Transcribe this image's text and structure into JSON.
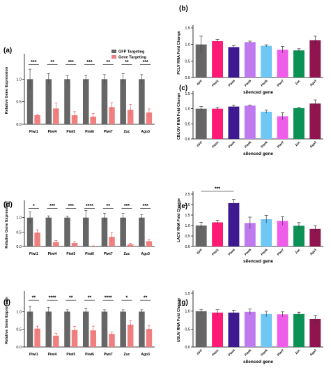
{
  "colors": {
    "gfp_gray": "#666666",
    "gene_salmon": "#f08080",
    "axis": "#000000",
    "sig": "#000000"
  },
  "chart_data": [
    {
      "id": "a",
      "panel_label": "(a)",
      "type": "bar",
      "ylabel": "Relative Gene Expression",
      "xlabel": "",
      "ylim": [
        0,
        1.5
      ],
      "yticks": [
        0.0,
        0.5,
        1.0
      ],
      "categories": [
        "Piwi1",
        "Piwi4",
        "Piwi5",
        "Piwi6",
        "Piwi7",
        "Zuc",
        "Ago3"
      ],
      "legend": [
        "GFP Targeting",
        "Gene Targeting"
      ],
      "series": [
        {
          "name": "GFP Targeting",
          "values": [
            1.0,
            1.0,
            1.0,
            1.0,
            1.0,
            1.0,
            1.0
          ],
          "errors": [
            0.22,
            0.12,
            0.08,
            0.08,
            0.1,
            0.12,
            0.1
          ]
        },
        {
          "name": "Gene Targeting",
          "values": [
            0.2,
            0.35,
            0.2,
            0.17,
            0.38,
            0.32,
            0.26
          ],
          "errors": [
            0.02,
            0.12,
            0.08,
            0.07,
            0.1,
            0.12,
            0.08
          ]
        }
      ],
      "significance": [
        "***",
        "**",
        "***",
        "***",
        "**",
        "**",
        "***"
      ]
    },
    {
      "id": "b",
      "panel_label": "(b)",
      "type": "bar",
      "ylabel": "PCLV RNA Fold Change",
      "xlabel": "silenced gene",
      "ylim": [
        0,
        1.5
      ],
      "yticks": [
        0.0,
        0.5,
        1.0,
        1.5
      ],
      "categories": [
        "GFP",
        "Piwi1",
        "Piwi4",
        "Piwi5",
        "Piwi6",
        "Piwi7",
        "Zuc",
        "Ago3"
      ],
      "colors": [
        "#666666",
        "#ff1a75",
        "#3d1a8f",
        "#c07af0",
        "#6ec7f5",
        "#ee5ee8",
        "#0b9155",
        "#8f1450"
      ],
      "series": [
        {
          "name": "",
          "values": [
            1.0,
            1.1,
            0.92,
            1.07,
            0.96,
            0.84,
            0.82,
            1.13
          ],
          "errors": [
            0.25,
            0.05,
            0.05,
            0.03,
            0.03,
            0.1,
            0.05,
            0.12
          ]
        }
      ]
    },
    {
      "id": "c",
      "panel_label": "(c)",
      "type": "bar",
      "ylabel": "CBLOV RNA Fold Change",
      "xlabel": "silenced gene",
      "ylim": [
        0,
        1.5
      ],
      "yticks": [
        0.0,
        0.5,
        1.0,
        1.5
      ],
      "categories": [
        "GFP",
        "Piwi1",
        "Piwi4",
        "Piwi5",
        "Piwi6",
        "Piwi7",
        "Zuc",
        "Ago3"
      ],
      "colors": [
        "#666666",
        "#ff1a75",
        "#3d1a8f",
        "#c07af0",
        "#6ec7f5",
        "#ee5ee8",
        "#0b9155",
        "#8f1450"
      ],
      "series": [
        {
          "name": "",
          "values": [
            1.0,
            1.0,
            1.07,
            1.1,
            0.9,
            0.75,
            1.02,
            1.17
          ],
          "errors": [
            0.07,
            0.05,
            0.05,
            0.02,
            0.05,
            0.12,
            0.02,
            0.12
          ]
        }
      ]
    },
    {
      "id": "d",
      "panel_label": "(d)",
      "type": "bar",
      "ylabel": "Relative Gene Expression",
      "xlabel": "",
      "ylim": [
        0,
        1.5
      ],
      "yticks": [
        0.0,
        0.5,
        1.0
      ],
      "categories": [
        "Piwi1",
        "Piwi4",
        "Piwi5",
        "Piwi6",
        "Piwi7",
        "Zuc",
        "Ago3"
      ],
      "series": [
        {
          "name": "GFP Targeting",
          "values": [
            1.0,
            1.0,
            1.0,
            1.0,
            1.0,
            1.0,
            1.0
          ],
          "errors": [
            0.2,
            0.06,
            0.05,
            0.25,
            0.15,
            0.15,
            0.1
          ]
        },
        {
          "name": "Gene Targeting",
          "values": [
            0.48,
            0.15,
            0.12,
            0.01,
            0.33,
            0.07,
            0.18
          ],
          "errors": [
            0.1,
            0.06,
            0.05,
            0.01,
            0.15,
            0.04,
            0.06
          ]
        }
      ],
      "significance": [
        "*",
        "***",
        "***",
        "****",
        "**",
        "***",
        "***"
      ]
    },
    {
      "id": "e",
      "panel_label": "(e)",
      "type": "bar",
      "ylabel": "LACV RNA Fold Change",
      "xlabel": "silenced gene",
      "ylim": [
        0,
        2.5
      ],
      "yticks": [
        0.0,
        0.5,
        1.0,
        1.5,
        2.0,
        2.5
      ],
      "categories": [
        "GFP",
        "Piwi1",
        "Piwi4",
        "Piwi5",
        "Piwi6",
        "Piwi7",
        "Zuc",
        "Ago3"
      ],
      "colors": [
        "#666666",
        "#ff1a75",
        "#3d1a8f",
        "#c07af0",
        "#6ec7f5",
        "#ee5ee8",
        "#0b9155",
        "#8f1450"
      ],
      "series": [
        {
          "name": "",
          "values": [
            1.0,
            1.15,
            2.07,
            1.12,
            1.3,
            1.22,
            0.99,
            0.84
          ],
          "errors": [
            0.15,
            0.1,
            0.18,
            0.28,
            0.18,
            0.2,
            0.15,
            0.15
          ]
        }
      ],
      "bracket": {
        "from": "GFP",
        "to": "Piwi4",
        "label": "***"
      }
    },
    {
      "id": "f",
      "panel_label": "(f)",
      "type": "bar",
      "ylabel": "Relative Gene Expression",
      "xlabel": "",
      "ylim": [
        0,
        1.5
      ],
      "yticks": [
        0.0,
        0.5,
        1.0
      ],
      "categories": [
        "Piwi1",
        "Piwi4",
        "Piwi5",
        "Piwi6",
        "Piwi7",
        "Zuc",
        "Ago3"
      ],
      "series": [
        {
          "name": "GFP Targeting",
          "values": [
            1.0,
            1.0,
            1.0,
            1.0,
            1.0,
            1.0,
            1.0
          ],
          "errors": [
            0.15,
            0.12,
            0.05,
            0.1,
            0.05,
            0.05,
            0.05
          ]
        },
        {
          "name": "Gene Targeting",
          "values": [
            0.52,
            0.32,
            0.48,
            0.47,
            0.37,
            0.63,
            0.51
          ],
          "errors": [
            0.07,
            0.07,
            0.1,
            0.12,
            0.05,
            0.12,
            0.1
          ]
        }
      ],
      "significance": [
        "**",
        "****",
        "**",
        "**",
        "****",
        "*",
        "**"
      ]
    },
    {
      "id": "g",
      "panel_label": "(g)",
      "type": "bar",
      "ylabel": "USUV RNA Fold Change",
      "xlabel": "silenced gene",
      "ylim": [
        0,
        1.5
      ],
      "yticks": [
        0.0,
        0.5,
        1.0,
        1.5
      ],
      "categories": [
        "GFP",
        "Piwi1",
        "Piwi4",
        "Piwi5",
        "Piwi6",
        "Piwi7",
        "Zuc",
        "Ago3"
      ],
      "colors": [
        "#666666",
        "#ff1a75",
        "#3d1a8f",
        "#c07af0",
        "#6ec7f5",
        "#ee5ee8",
        "#0b9155",
        "#8f1450"
      ],
      "series": [
        {
          "name": "",
          "values": [
            1.0,
            0.96,
            0.96,
            0.98,
            0.92,
            0.91,
            0.92,
            0.78
          ],
          "errors": [
            0.05,
            0.08,
            0.06,
            0.08,
            0.08,
            0.07,
            0.05,
            0.1
          ]
        }
      ]
    }
  ]
}
